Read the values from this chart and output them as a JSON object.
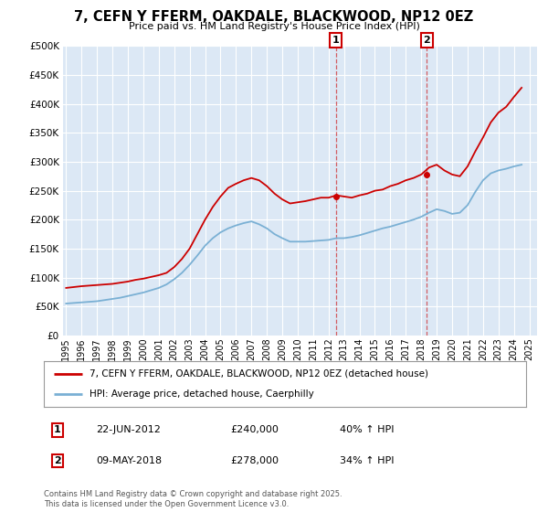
{
  "title": "7, CEFN Y FFERM, OAKDALE, BLACKWOOD, NP12 0EZ",
  "subtitle": "Price paid vs. HM Land Registry's House Price Index (HPI)",
  "ytick_values": [
    0,
    50000,
    100000,
    150000,
    200000,
    250000,
    300000,
    350000,
    400000,
    450000,
    500000
  ],
  "ylim": [
    0,
    500000
  ],
  "xlim_start": 1994.8,
  "xlim_end": 2025.5,
  "x_ticks": [
    1995,
    1996,
    1997,
    1998,
    1999,
    2000,
    2001,
    2002,
    2003,
    2004,
    2005,
    2006,
    2007,
    2008,
    2009,
    2010,
    2011,
    2012,
    2013,
    2014,
    2015,
    2016,
    2017,
    2018,
    2019,
    2020,
    2021,
    2022,
    2023,
    2024,
    2025
  ],
  "house_color": "#cc0000",
  "hpi_color": "#7ab0d4",
  "background_color": "#dce8f5",
  "grid_color": "#ffffff",
  "marker1_x": 2012.47,
  "marker1_y": 240000,
  "marker1_label": "1",
  "marker1_date": "22-JUN-2012",
  "marker1_price": "£240,000",
  "marker1_hpi": "40% ↑ HPI",
  "marker2_x": 2018.36,
  "marker2_y": 278000,
  "marker2_label": "2",
  "marker2_date": "09-MAY-2018",
  "marker2_price": "£278,000",
  "marker2_hpi": "34% ↑ HPI",
  "legend_house": "7, CEFN Y FFERM, OAKDALE, BLACKWOOD, NP12 0EZ (detached house)",
  "legend_hpi": "HPI: Average price, detached house, Caerphilly",
  "footer": "Contains HM Land Registry data © Crown copyright and database right 2025.\nThis data is licensed under the Open Government Licence v3.0.",
  "house_x": [
    1995.0,
    1995.5,
    1996.0,
    1996.5,
    1997.0,
    1997.5,
    1998.0,
    1998.5,
    1999.0,
    1999.5,
    2000.0,
    2000.5,
    2001.0,
    2001.5,
    2002.0,
    2002.5,
    2003.0,
    2003.5,
    2004.0,
    2004.5,
    2005.0,
    2005.5,
    2006.0,
    2006.5,
    2007.0,
    2007.5,
    2008.0,
    2008.5,
    2009.0,
    2009.5,
    2010.0,
    2010.5,
    2011.0,
    2011.5,
    2012.0,
    2012.5,
    2013.0,
    2013.5,
    2014.0,
    2014.5,
    2015.0,
    2015.5,
    2016.0,
    2016.5,
    2017.0,
    2017.5,
    2018.0,
    2018.5,
    2019.0,
    2019.5,
    2020.0,
    2020.5,
    2021.0,
    2021.5,
    2022.0,
    2022.5,
    2023.0,
    2023.5,
    2024.0,
    2024.5
  ],
  "house_y": [
    82000,
    83500,
    85000,
    86000,
    87000,
    88000,
    89000,
    91000,
    93000,
    96000,
    98000,
    101000,
    104000,
    108000,
    118000,
    132000,
    150000,
    175000,
    200000,
    222000,
    240000,
    255000,
    262000,
    268000,
    272000,
    268000,
    258000,
    245000,
    235000,
    228000,
    230000,
    232000,
    235000,
    238000,
    238000,
    242000,
    240000,
    238000,
    242000,
    245000,
    250000,
    252000,
    258000,
    262000,
    268000,
    272000,
    278000,
    290000,
    295000,
    285000,
    278000,
    275000,
    292000,
    318000,
    342000,
    368000,
    385000,
    395000,
    412000,
    428000
  ],
  "hpi_x": [
    1995.0,
    1995.5,
    1996.0,
    1996.5,
    1997.0,
    1997.5,
    1998.0,
    1998.5,
    1999.0,
    1999.5,
    2000.0,
    2000.5,
    2001.0,
    2001.5,
    2002.0,
    2002.5,
    2003.0,
    2003.5,
    2004.0,
    2004.5,
    2005.0,
    2005.5,
    2006.0,
    2006.5,
    2007.0,
    2007.5,
    2008.0,
    2008.5,
    2009.0,
    2009.5,
    2010.0,
    2010.5,
    2011.0,
    2011.5,
    2012.0,
    2012.5,
    2013.0,
    2013.5,
    2014.0,
    2014.5,
    2015.0,
    2015.5,
    2016.0,
    2016.5,
    2017.0,
    2017.5,
    2018.0,
    2018.5,
    2019.0,
    2019.5,
    2020.0,
    2020.5,
    2021.0,
    2021.5,
    2022.0,
    2022.5,
    2023.0,
    2023.5,
    2024.0,
    2024.5
  ],
  "hpi_y": [
    55000,
    56000,
    57000,
    58000,
    59000,
    61000,
    63000,
    65000,
    68000,
    71000,
    74000,
    78000,
    82000,
    88000,
    97000,
    108000,
    122000,
    138000,
    155000,
    168000,
    178000,
    185000,
    190000,
    194000,
    197000,
    192000,
    185000,
    175000,
    168000,
    162000,
    162000,
    162000,
    163000,
    164000,
    165000,
    168000,
    168000,
    170000,
    173000,
    177000,
    181000,
    185000,
    188000,
    192000,
    196000,
    200000,
    205000,
    212000,
    218000,
    215000,
    210000,
    212000,
    225000,
    248000,
    268000,
    280000,
    285000,
    288000,
    292000,
    295000
  ]
}
